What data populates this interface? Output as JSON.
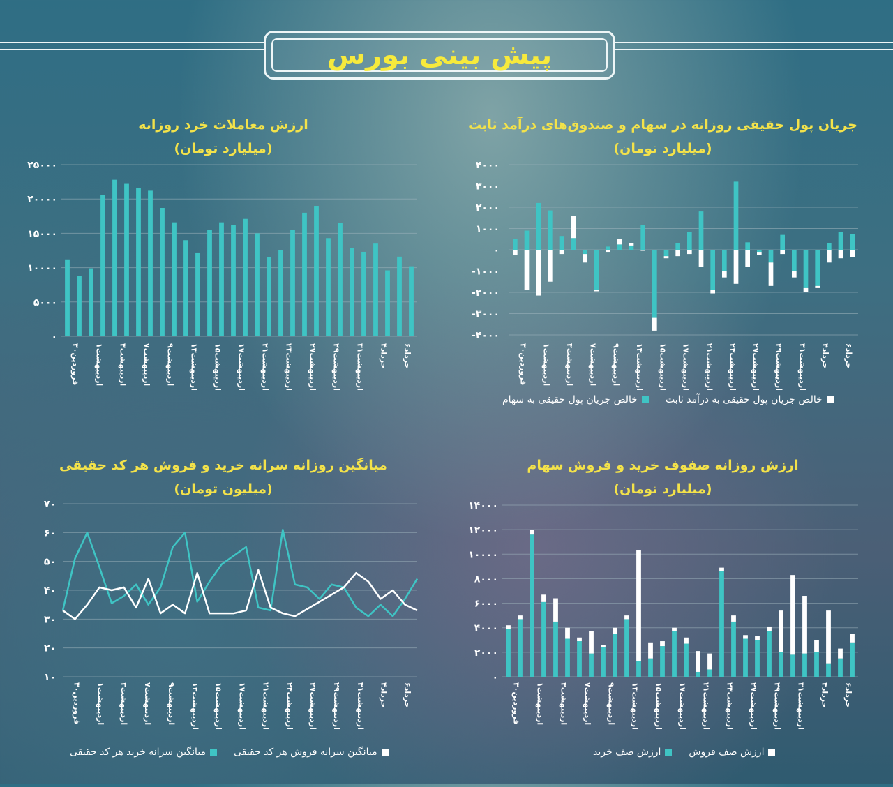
{
  "header": {
    "title": "پیش بینی بورس"
  },
  "colors": {
    "teal": "#3fc4c4",
    "white": "#ffffff",
    "title_yellow": "#f3e24a",
    "grid": "#9fb4bd"
  },
  "x_labels": [
    "۳۰فروردین",
    "اردیبهشت۱",
    "اردیبهشت۳",
    "اردیبهشت۷",
    "اردیبهشت۹",
    "اردیبهشت۱۳",
    "اردیبهشت۱۵",
    "اردیبهشت۱۷",
    "اردیبهشت۲۱",
    "اردیبهشت۲۳",
    "اردیبهشت۲۷",
    "اردیبهشت۲۹",
    "اردیبهشت۳۱",
    "خرداد۴",
    "خرداد۶"
  ],
  "chart_data": [
    {
      "id": "retail",
      "type": "bar",
      "title": "ارزش معاملات خرد روزانه",
      "subtitle": "(میلیارد تومان)",
      "ylim": [
        0,
        25000
      ],
      "yticks": [
        "0",
        "5000",
        "10000",
        "15000",
        "20000",
        "25000"
      ],
      "series": [
        {
          "values": [
            11200,
            8800,
            9900,
            20600,
            22800,
            22200,
            21600,
            21200,
            18700,
            16600,
            14000,
            12200,
            15500,
            16600,
            16200,
            17100,
            15000,
            11500,
            12500,
            15500,
            18000,
            19000,
            14300,
            16500,
            12900,
            12300,
            13500,
            9600,
            11600,
            10200
          ]
        }
      ]
    },
    {
      "id": "realmoney",
      "type": "bar",
      "title": "جریان پول حقیقی روزانه در سهام و صندوق‌های درآمد ثابت",
      "subtitle": "(میلیارد تومان)",
      "ylim": [
        -4000,
        4000
      ],
      "yticks": [
        "-4000",
        "-3000",
        "-2000",
        "-1000",
        "0",
        "1000",
        "2000",
        "3000",
        "4000"
      ],
      "series": [
        {
          "name": "خالص جریان پول حقیقی به سهام",
          "values": [
            500,
            900,
            2200,
            1850,
            650,
            550,
            -200,
            -1900,
            150,
            250,
            200,
            1150,
            -3200,
            -300,
            300,
            850,
            1800,
            -1900,
            -1000,
            3200,
            350,
            -100,
            -600,
            700,
            -1000,
            -1800,
            -1700,
            300,
            850,
            750
          ]
        },
        {
          "name": "خالص جریان پول حقیقی به درآمد ثابت",
          "values": [
            -250,
            -1900,
            -2150,
            -1500,
            -200,
            1050,
            -400,
            -50,
            -100,
            250,
            100,
            -50,
            -600,
            -100,
            -300,
            -200,
            -800,
            -150,
            -300,
            -1600,
            -800,
            -150,
            -1100,
            -200,
            -300,
            -200,
            -100,
            -600,
            -400,
            -350
          ]
        }
      ]
    },
    {
      "id": "percapita",
      "type": "line",
      "title": "میانگین روزانه سرانه خرید و فروش هر کد حقیقی",
      "subtitle": "(میلیون تومان)",
      "ylim": [
        10,
        70
      ],
      "yticks": [
        "10",
        "20",
        "30",
        "40",
        "50",
        "60",
        "70"
      ],
      "series": [
        {
          "name": "میانگین سرانه خرید هر کد حقیقی",
          "values": [
            33,
            51,
            60,
            48,
            35.5,
            38,
            42,
            35,
            41,
            55,
            60,
            36,
            43,
            49,
            52,
            55,
            34,
            33,
            61,
            42,
            41,
            37,
            42,
            41,
            34,
            31,
            35,
            31,
            37,
            44
          ]
        },
        {
          "name": "میانگین سرانه فروش هر کد حقیقی",
          "values": [
            33,
            30,
            35,
            41,
            40,
            41,
            34,
            44,
            32,
            35,
            32,
            46,
            32,
            32,
            32,
            33,
            47,
            34,
            32,
            31,
            33.5,
            36,
            38.5,
            41,
            46,
            43,
            37,
            40,
            35,
            33
          ]
        }
      ]
    },
    {
      "id": "queues",
      "type": "bar",
      "title": "ارزش روزانه صفوف خرید و فروش سهام",
      "subtitle": "(میلیارد تومان)",
      "ylim": [
        0,
        14000
      ],
      "yticks": [
        "0",
        "2000",
        "4000",
        "6000",
        "8000",
        "10000",
        "12000",
        "14000"
      ],
      "series": [
        {
          "name": "ارزش صف خرید",
          "values": [
            3900,
            4700,
            11600,
            6100,
            4500,
            3100,
            2900,
            1900,
            2400,
            3500,
            4700,
            1300,
            1500,
            2500,
            3700,
            2700,
            400,
            600,
            8600,
            4500,
            3100,
            3000,
            3700,
            2000,
            1800,
            1900,
            2000,
            1100,
            1500,
            2800
          ]
        },
        {
          "name": "ارزش صف فروش",
          "values": [
            300,
            300,
            400,
            600,
            1900,
            900,
            300,
            1800,
            200,
            500,
            300,
            9000,
            1300,
            400,
            300,
            500,
            1700,
            1300,
            300,
            500,
            300,
            300,
            400,
            3400,
            6500,
            4700,
            1000,
            4300,
            800,
            700
          ]
        }
      ]
    }
  ],
  "legend_retail_none": ""
}
